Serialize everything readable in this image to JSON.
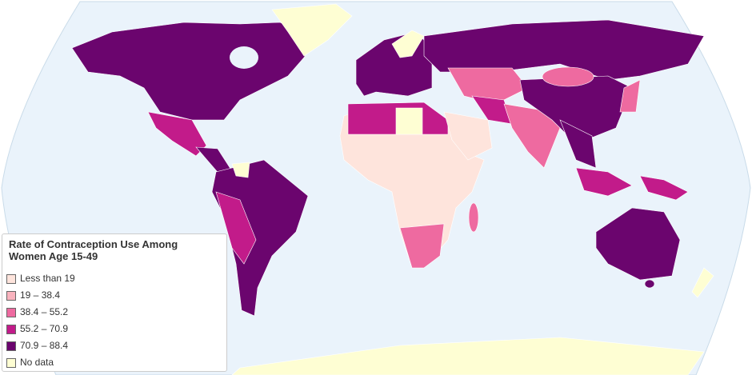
{
  "legend": {
    "title": "Rate of Contraception Use Among Women Age 15-49",
    "items": [
      {
        "label": "Less than 19",
        "color": "#fee4dc"
      },
      {
        "label": "19 – 38.4",
        "color": "#f9b3be"
      },
      {
        "label": "38.4 – 55.2",
        "color": "#ee6aa0"
      },
      {
        "label": "55.2 – 70.9",
        "color": "#c21b8a"
      },
      {
        "label": "70.9 – 88.4",
        "color": "#6b056e"
      },
      {
        "label": "No data",
        "color": "#fefed3"
      }
    ]
  }
}
